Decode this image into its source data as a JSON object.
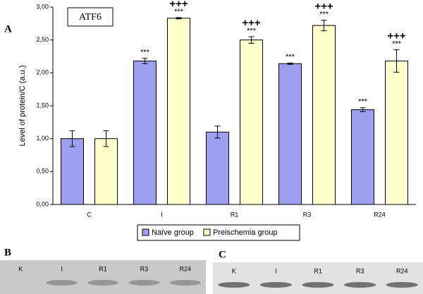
{
  "chart_data": {
    "type": "bar",
    "panel_label": "A",
    "title": "ATF6",
    "ylabel": "Level of protein/C (a.u.)",
    "categories": [
      "C",
      "I",
      "R1",
      "R3",
      "R24"
    ],
    "series": [
      {
        "name": "Naïve group",
        "color": "#9f9ff2",
        "values": [
          1.0,
          2.18,
          1.1,
          2.14,
          1.44
        ],
        "errors": [
          0.12,
          0.04,
          0.09,
          0.01,
          0.03
        ],
        "annotations": [
          null,
          "***",
          null,
          "***",
          "***"
        ],
        "markers": [
          null,
          null,
          null,
          null,
          null
        ]
      },
      {
        "name": "Preischemia group",
        "color": "#ffffcc",
        "values": [
          1.0,
          2.83,
          2.5,
          2.72,
          2.18
        ],
        "errors": [
          0.12,
          0.01,
          0.05,
          0.08,
          0.17
        ],
        "annotations": [
          null,
          "***",
          "***",
          "***",
          "***"
        ],
        "markers": [
          null,
          "+++",
          "+++",
          "+++",
          "+++"
        ]
      }
    ],
    "ylim": [
      0,
      3
    ],
    "yticks": [
      {
        "value": 0,
        "label": "0,00"
      },
      {
        "value": 0.5,
        "label": "0,50"
      },
      {
        "value": 1,
        "label": "1,00"
      },
      {
        "value": 1.5,
        "label": "1,50"
      },
      {
        "value": 2,
        "label": "2,00"
      },
      {
        "value": 2.5,
        "label": "2,50"
      },
      {
        "value": 3,
        "label": "3,00"
      }
    ],
    "legend_position": "bottom"
  },
  "blots": [
    {
      "label": "B",
      "lanes": [
        "K",
        "I",
        "R1",
        "R3",
        "R24"
      ]
    },
    {
      "label": "C",
      "lanes": [
        "K",
        "I",
        "R1",
        "R3",
        "R24"
      ]
    }
  ]
}
